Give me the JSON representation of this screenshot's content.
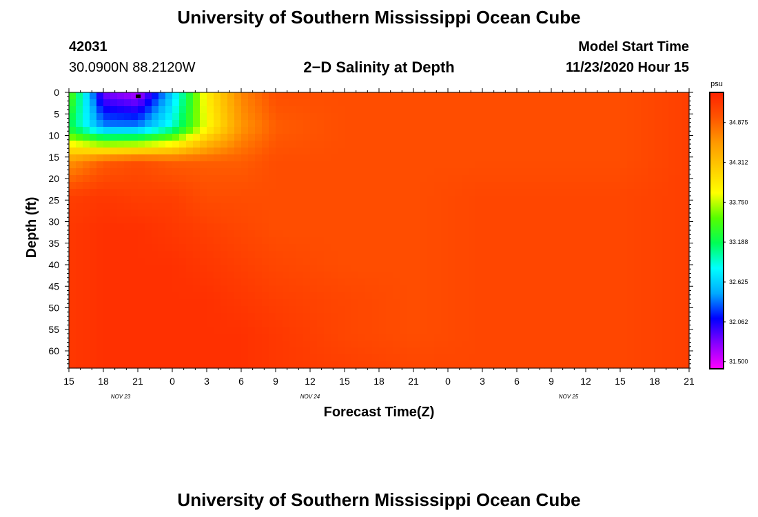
{
  "page": {
    "title_top": "University of Southern Mississippi Ocean Cube",
    "title_bottom": "University of Southern Mississippi Ocean Cube",
    "station_id": "42031",
    "station_coords": "30.0900N 88.2120W",
    "plot_title": "2−D Salinity at Depth",
    "model_start_label": "Model Start Time",
    "model_start_value": "11/23/2020 Hour 15"
  },
  "chart_data": {
    "type": "heatmap",
    "title": "2−D Salinity at Depth",
    "xlabel": "Forecast Time(Z)",
    "ylabel": "Depth (ft)",
    "x_tick_labels": [
      "15",
      "18",
      "21",
      "0",
      "3",
      "6",
      "9",
      "12",
      "15",
      "18",
      "21",
      "0",
      "3",
      "6",
      "9",
      "12",
      "15",
      "18",
      "21"
    ],
    "x_range_hours": [
      0,
      54
    ],
    "date_labels": [
      {
        "text": "NOV  23",
        "hour": 4.5
      },
      {
        "text": "NOV  24",
        "hour": 21
      },
      {
        "text": "NOV  25",
        "hour": 43.5
      }
    ],
    "y_tick_labels": [
      "0",
      "5",
      "10",
      "15",
      "20",
      "25",
      "30",
      "35",
      "40",
      "45",
      "50",
      "55",
      "60"
    ],
    "ylim": [
      0,
      64
    ],
    "y_inverted": true,
    "colorbar": {
      "unit": "psu",
      "min": 31.4,
      "max": 35.3,
      "tick_labels": [
        "31.500",
        "32.062",
        "32.625",
        "33.188",
        "33.750",
        "34.312",
        "34.875"
      ],
      "colors": [
        "#ff00ff",
        "#8800ff",
        "#0000ff",
        "#00aaff",
        "#00ffff",
        "#00ff55",
        "#55ff00",
        "#ffff00",
        "#ffcc00",
        "#ff9900",
        "#ff5500",
        "#ff2200"
      ]
    },
    "depths_ft": [
      0,
      8,
      16,
      24,
      32,
      40,
      48,
      56,
      64
    ],
    "hours": [
      0,
      3,
      6,
      9,
      12,
      15,
      18,
      24,
      30,
      36,
      42,
      48,
      54
    ],
    "salinity_psu": [
      [
        33.6,
        31.8,
        31.6,
        32.6,
        34.0,
        34.7,
        35.0,
        35.0,
        35.0,
        35.0,
        35.0,
        35.0,
        35.1
      ],
      [
        33.2,
        32.4,
        32.4,
        32.9,
        33.9,
        34.6,
        34.9,
        35.0,
        35.0,
        35.0,
        35.0,
        35.0,
        35.1
      ],
      [
        34.6,
        34.9,
        35.0,
        34.9,
        34.9,
        34.9,
        35.0,
        35.0,
        35.0,
        35.0,
        35.0,
        35.0,
        35.1
      ],
      [
        35.1,
        35.15,
        35.1,
        35.1,
        35.0,
        35.0,
        35.0,
        35.0,
        35.0,
        35.05,
        35.05,
        35.05,
        35.1
      ],
      [
        35.15,
        35.2,
        35.2,
        35.15,
        35.1,
        35.05,
        35.0,
        35.0,
        35.0,
        35.05,
        35.05,
        35.05,
        35.1
      ],
      [
        35.15,
        35.2,
        35.2,
        35.2,
        35.15,
        35.1,
        35.05,
        35.0,
        35.0,
        35.05,
        35.05,
        35.05,
        35.1
      ],
      [
        35.15,
        35.2,
        35.2,
        35.2,
        35.2,
        35.15,
        35.1,
        35.05,
        35.0,
        35.05,
        35.05,
        35.05,
        35.1
      ],
      [
        35.15,
        35.2,
        35.2,
        35.2,
        35.2,
        35.2,
        35.15,
        35.05,
        35.0,
        35.05,
        35.05,
        35.05,
        35.1
      ],
      [
        35.15,
        35.2,
        35.2,
        35.2,
        35.2,
        35.2,
        35.15,
        35.1,
        35.05,
        35.05,
        35.05,
        35.05,
        35.1
      ]
    ],
    "marker": {
      "hour": 6,
      "depth_ft": 1
    }
  }
}
